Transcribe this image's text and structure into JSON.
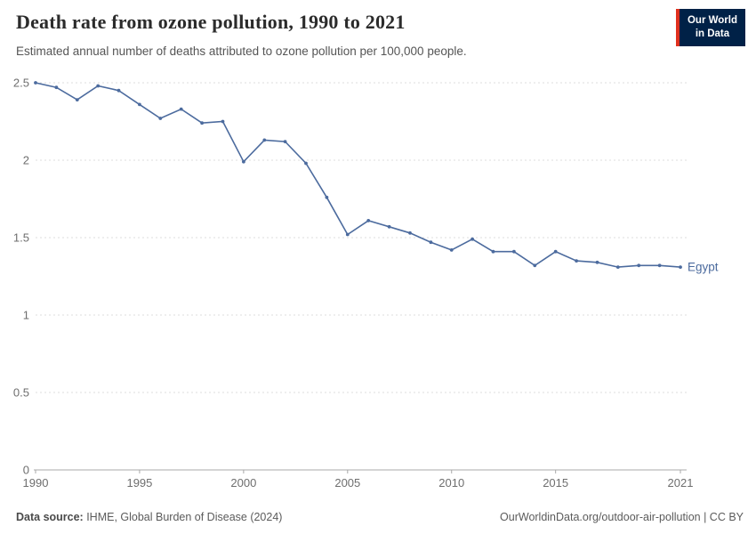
{
  "header": {
    "title": "Death rate from ozone pollution, 1990 to 2021",
    "subtitle": "Estimated annual number of deaths attributed to ozone pollution per 100,000 people.",
    "logo": {
      "line1": "Our World",
      "line2": "in Data",
      "bg_color": "#002147",
      "accent_color": "#e0301e"
    }
  },
  "footer": {
    "source_label": "Data source:",
    "source_text": " IHME, Global Burden of Disease (2024)",
    "link_text": "OurWorldinData.org/outdoor-air-pollution | CC BY"
  },
  "chart_data": {
    "type": "line",
    "title": "Death rate from ozone pollution, 1990 to 2021",
    "xlabel": "",
    "ylabel": "",
    "xlim": [
      1990,
      2021
    ],
    "ylim": [
      0,
      2.5
    ],
    "x_ticks": [
      1990,
      1995,
      2000,
      2005,
      2010,
      2015,
      2021
    ],
    "y_ticks": [
      0,
      0.5,
      1,
      1.5,
      2,
      2.5
    ],
    "grid": "dashed-horizontal",
    "legend": "end-of-line-label",
    "series": [
      {
        "name": "Egypt",
        "color": "#4c6b9e",
        "x": [
          1990,
          1991,
          1992,
          1993,
          1994,
          1995,
          1996,
          1997,
          1998,
          1999,
          2000,
          2001,
          2002,
          2003,
          2004,
          2005,
          2006,
          2007,
          2008,
          2009,
          2010,
          2011,
          2012,
          2013,
          2014,
          2015,
          2016,
          2017,
          2018,
          2019,
          2020,
          2021
        ],
        "values": [
          2.5,
          2.47,
          2.39,
          2.48,
          2.45,
          2.36,
          2.27,
          2.33,
          2.24,
          2.25,
          1.99,
          2.13,
          2.12,
          1.98,
          1.76,
          1.52,
          1.61,
          1.57,
          1.53,
          1.47,
          1.42,
          1.49,
          1.41,
          1.41,
          1.32,
          1.41,
          1.35,
          1.34,
          1.31,
          1.32,
          1.32,
          1.31
        ]
      }
    ]
  }
}
